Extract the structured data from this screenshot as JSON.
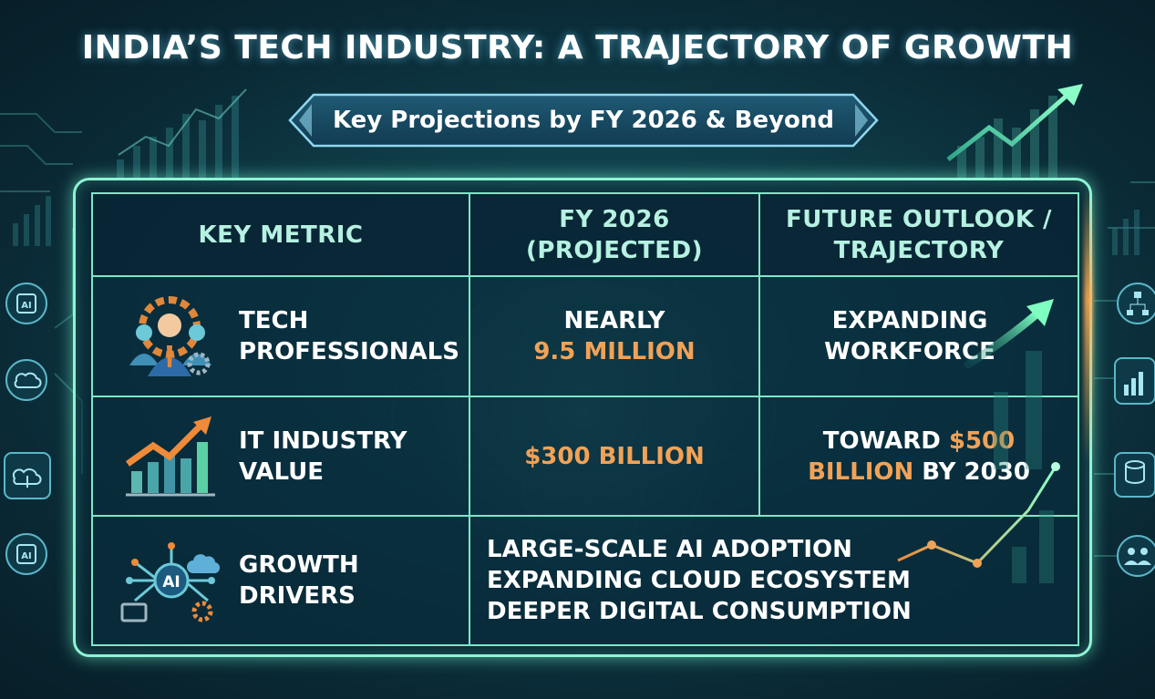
{
  "title": "INDIA’S TECH INDUSTRY: A TRAJECTORY OF GROWTH",
  "subtitle": "Key Projections by FY 2026 & Beyond",
  "table": {
    "headers": [
      "KEY METRIC",
      "FY 2026\n(PROJECTED)",
      "FUTURE OUTLOOK /\nTRAJECTORY"
    ],
    "rows": [
      {
        "icon": "tech-professionals-icon",
        "metric": "TECH\nPROFESSIONALS",
        "fy2026_prefix": "NEARLY",
        "fy2026_highlight": "9.5 MILLION",
        "outlook_line1": "EXPANDING",
        "outlook_line2": "WORKFORCE"
      },
      {
        "icon": "growth-bar-chart-icon",
        "metric": "IT INDUSTRY\nVALUE",
        "fy2026_highlight": "$300 BILLION",
        "outlook_prefix": "TOWARD ",
        "outlook_highlight1": "$500",
        "outlook_highlight2": "BILLION",
        "outlook_suffix": " BY 2030"
      },
      {
        "icon": "ai-network-icon",
        "metric": "GROWTH\nDRIVERS",
        "drivers": [
          "LARGE-SCALE AI ADOPTION",
          "EXPANDING CLOUD ECOSYSTEM",
          "DEEPER DIGITAL CONSUMPTION"
        ]
      }
    ]
  },
  "side_icons": {
    "left": [
      "AI",
      "cloud-network-icon",
      "cloud-upload-icon",
      "AI"
    ],
    "right": [
      "org-chart-icon",
      "bar-chart-icon",
      "database-icon",
      "users-icon"
    ]
  },
  "colors": {
    "accent_orange": "#f2a256",
    "frame_green": "#8ff4d4",
    "header_text": "#b6f1e2",
    "background": "#0b2f3c"
  }
}
